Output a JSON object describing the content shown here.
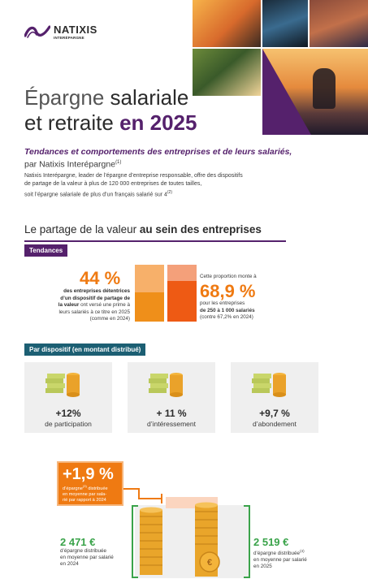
{
  "brand": {
    "name": "NATIXIS",
    "sub": "INTERÉPARGNE"
  },
  "title": {
    "line1_light": "Épargne ",
    "line1_bold": "salariale",
    "line2_bold": "et retraite ",
    "line2_purple": "en 2025"
  },
  "subtitle": {
    "italic": "Tendances et comportements des entreprises et de leurs salariés,",
    "by": "par Natixis Interépargne",
    "by_note": "(1)"
  },
  "intro": {
    "line1": "Natixis Interépargne, leader de l’épargne d’entreprise responsable, offre des dispositifs",
    "line2": "de partage de la valeur à plus de 120 000 entreprises de toutes tailles,",
    "line3": "soit l’épargne salariale de plus d’un français salarié sur 4",
    "note": "(2)"
  },
  "section": {
    "light": "Le partage de la valeur ",
    "bold": "au sein des entreprises"
  },
  "tags": {
    "trends": "Tendances",
    "by_device": "Par dispositif (en montant distribué)"
  },
  "trend_left": {
    "value": "44 %",
    "l1": "des entreprises détentrices",
    "l2": "d’un dispositif de partage de",
    "l3_bold": "la valeur",
    "l3": " ont versé une prime à",
    "l4": "leurs salariés à ce titre en 2025",
    "l5": "(comme en 2024)"
  },
  "trend_right": {
    "intro": "Cette proportion monte à",
    "value": "68,9 %",
    "l1": "pour les entreprises",
    "l2": "de 250 à 1 000 salariés",
    "l3": "(contre 67,2% en 2024)"
  },
  "cards": [
    {
      "value": "+12%",
      "label": "de participation"
    },
    {
      "value": "+ 11 %",
      "label": "d’intéressement"
    },
    {
      "value": "+9,7 %",
      "label": "d’abondement"
    }
  ],
  "callout": {
    "value": "+1,9 %",
    "l1": "d’épargne",
    "l1_note": "(3)",
    "l1b": " distribuée",
    "l2": "en moyenne par sala-",
    "l3": "rié par rapport à 2024"
  },
  "amount_2024": {
    "value": "2 471 €",
    "l1": "d’épargne distribuée",
    "l2": "en moyenne par salarié",
    "l3": "en 2024"
  },
  "amount_2025": {
    "value": "2 519 €",
    "l1": "d’épargne distribuée",
    "l2": "en moyenne par salarié",
    "l3": "en 2025",
    "l1_note": "(4)"
  },
  "colors": {
    "purple": "#55216c",
    "orange": "#ef7a12",
    "teal": "#1c5f73",
    "green": "#3aa34a"
  }
}
